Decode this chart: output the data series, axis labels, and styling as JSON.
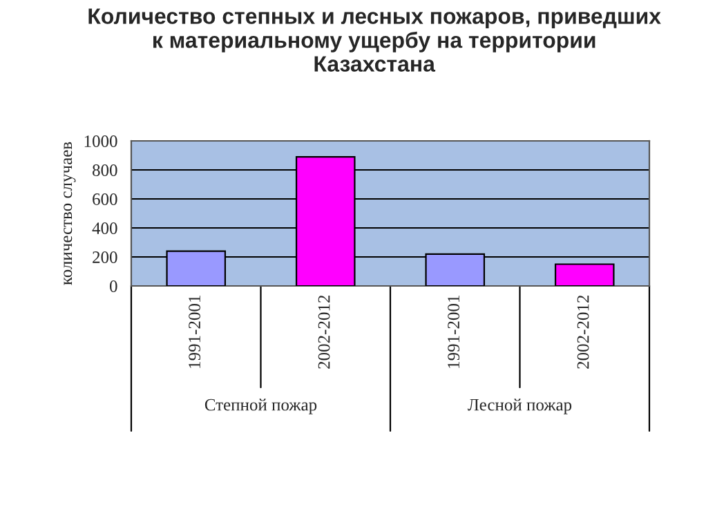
{
  "chart_data": {
    "type": "bar",
    "title": "Количество степных и лесных пожаров, приведших\nк материальному ущербу на территории\nКазахстана",
    "ylabel": "количество случаев",
    "categories": [
      "1991-2001",
      "2002-2012",
      "1991-2001",
      "2002-2012"
    ],
    "values": [
      240,
      890,
      220,
      150
    ],
    "colors": [
      "#9999ff",
      "#ff00ff",
      "#9999ff",
      "#ff00ff"
    ],
    "ylim": [
      0,
      1000
    ],
    "yticks": [
      0,
      200,
      400,
      600,
      800,
      1000
    ],
    "grid": "y",
    "annotations": [
      "Степной пожар",
      "Лесной пожар"
    ]
  }
}
